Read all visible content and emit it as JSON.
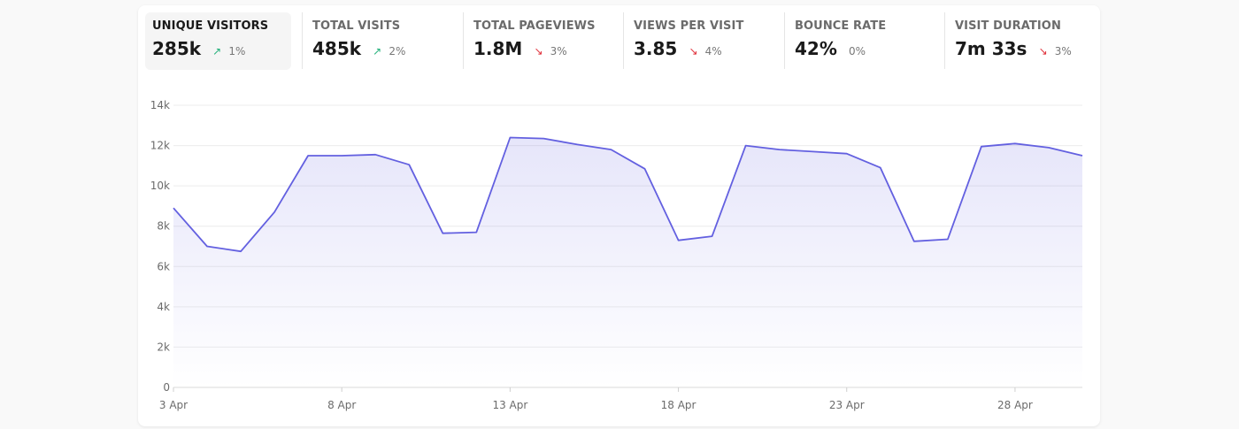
{
  "metrics": [
    {
      "label": "UNIQUE VISITORS",
      "value": "285k",
      "change": "1%",
      "trend": "up",
      "selected": true
    },
    {
      "label": "TOTAL VISITS",
      "value": "485k",
      "change": "2%",
      "trend": "up",
      "selected": false
    },
    {
      "label": "TOTAL PAGEVIEWS",
      "value": "1.8M",
      "change": "3%",
      "trend": "down",
      "selected": false
    },
    {
      "label": "VIEWS PER VISIT",
      "value": "3.85",
      "change": "4%",
      "trend": "down",
      "selected": false
    },
    {
      "label": "BOUNCE RATE",
      "value": "42%",
      "change": "0%",
      "trend": "flat",
      "selected": false
    },
    {
      "label": "VISIT DURATION",
      "value": "7m 33s",
      "change": "3%",
      "trend": "down",
      "selected": false
    }
  ],
  "colors": {
    "line": "#6360e0",
    "fill": "#6360e0",
    "up": "#22b07a",
    "down": "#e0303a",
    "grid": "#ececec"
  },
  "icons": {
    "up": "arrow-up-right-icon",
    "down": "arrow-down-right-icon"
  },
  "chart_data": {
    "type": "area",
    "x": [
      "3 Apr",
      "4 Apr",
      "5 Apr",
      "6 Apr",
      "7 Apr",
      "8 Apr",
      "9 Apr",
      "10 Apr",
      "11 Apr",
      "12 Apr",
      "13 Apr",
      "14 Apr",
      "15 Apr",
      "16 Apr",
      "17 Apr",
      "18 Apr",
      "19 Apr",
      "20 Apr",
      "21 Apr",
      "22 Apr",
      "23 Apr",
      "24 Apr",
      "25 Apr",
      "26 Apr",
      "27 Apr",
      "28 Apr",
      "29 Apr",
      "30 Apr"
    ],
    "series": [
      {
        "values": [
          8900,
          7000,
          6750,
          8700,
          11500,
          11500,
          11550,
          11050,
          7650,
          7700,
          12400,
          12350,
          12050,
          11800,
          10850,
          7300,
          7500,
          12000,
          11800,
          11700,
          11600,
          10900,
          7250,
          7350,
          11950,
          12100,
          11900,
          11500
        ]
      }
    ],
    "x_tick_labels": [
      "3 Apr",
      "8 Apr",
      "13 Apr",
      "18 Apr",
      "23 Apr",
      "28 Apr"
    ],
    "y_tick_labels": [
      "0",
      "2k",
      "4k",
      "6k",
      "8k",
      "10k",
      "12k",
      "14k"
    ],
    "ylim": [
      0,
      14000
    ],
    "grid": true
  }
}
